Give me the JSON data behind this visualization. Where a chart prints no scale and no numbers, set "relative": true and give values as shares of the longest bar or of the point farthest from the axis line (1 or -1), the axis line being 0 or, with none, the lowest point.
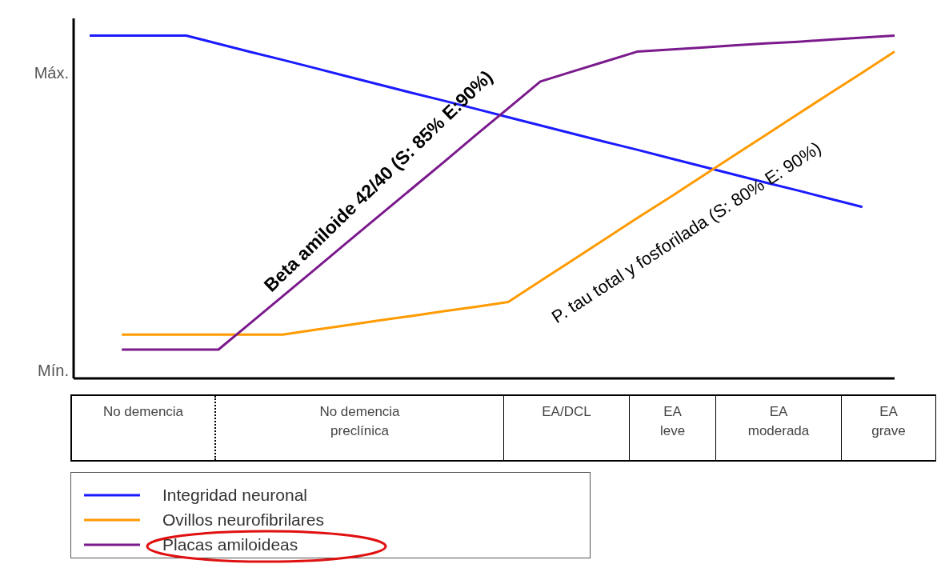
{
  "chart_data": {
    "type": "line",
    "relative": true,
    "legend": "bottom left",
    "categories": [
      null,
      null,
      null,
      null,
      null,
      null,
      null,
      null,
      null,
      null,
      null,
      null,
      null,
      null,
      null,
      null,
      null,
      null,
      null,
      null,
      null,
      null,
      null,
      null,
      null,
      null
    ],
    "series": [
      {
        "name": "Integridad neuronal",
        "color": "#1a1aff",
        "values": [
          1.0,
          1.0,
          1.0,
          1.0,
          0.976,
          0.952,
          0.929,
          0.905,
          0.881,
          0.857,
          0.833,
          0.81,
          0.786,
          0.762,
          0.738,
          0.714,
          0.69,
          0.667,
          0.643,
          0.619,
          0.595,
          0.571,
          0.548,
          0.524,
          0.5,
          null
        ]
      },
      {
        "name": "Ovillos neurofibrilares",
        "color": "#ff9a00",
        "values": [
          null,
          0.128,
          0.128,
          0.128,
          0.128,
          0.128,
          0.128,
          0.142,
          0.155,
          0.169,
          0.182,
          0.196,
          0.209,
          0.223,
          0.284,
          0.345,
          0.406,
          0.467,
          0.527,
          0.588,
          0.649,
          0.71,
          0.771,
          0.832,
          0.892,
          0.953
        ]
      },
      {
        "name": "Placas amiloideas",
        "color": "#7a1a8c",
        "values": [
          null,
          0.084,
          0.084,
          0.084,
          0.084,
          0.162,
          0.24,
          0.318,
          0.397,
          0.475,
          0.553,
          0.631,
          0.71,
          0.788,
          0.866,
          0.895,
          0.924,
          0.953,
          0.959,
          0.965,
          0.971,
          0.977,
          0.982,
          0.988,
          0.994,
          1.0
        ]
      }
    ],
    "annotations": [
      "Beta amiloide 42/40 (S: 85% E:90%)",
      "P. tau total y fosforilada (S: 80% E: 90%)",
      "Máx.",
      "Mín.",
      "No demencia",
      "No demencia preclínica",
      "EA/DCL",
      "EA leve",
      "EA moderada",
      "EA grave"
    ]
  }
}
